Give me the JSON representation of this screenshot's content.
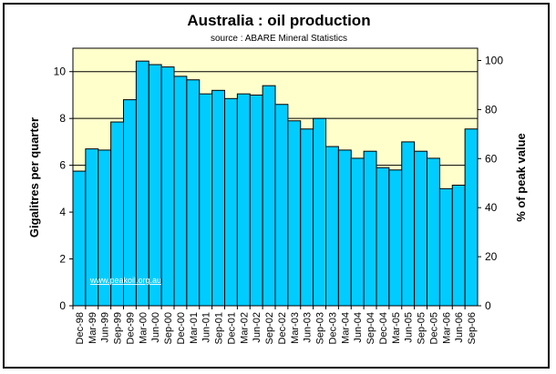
{
  "chart_data": {
    "type": "bar",
    "title": "Australia : oil production",
    "subtitle": "source : ABARE Mineral Statistics",
    "ylabel": "Gigalitres per quarter",
    "y2label": "% of peak value",
    "ylim": [
      0,
      11
    ],
    "y_ticks": [
      0,
      2,
      4,
      6,
      8,
      10
    ],
    "y2lim": [
      0,
      105
    ],
    "y2_ticks": [
      0,
      20,
      40,
      60,
      80,
      100
    ],
    "grid": true,
    "watermark": "www.peakoil.org.au",
    "colors": {
      "plot_bg": "#ffffcc",
      "bar": "#00ccff",
      "bar_edge": "#000000"
    },
    "categories": [
      "Dec-98",
      "Mar-99",
      "Jun-99",
      "Sep-99",
      "Dec-99",
      "Mar-00",
      "Jun-00",
      "Sep-00",
      "Dec-00",
      "Mar-01",
      "Jun-01",
      "Sep-01",
      "Dec-01",
      "Mar-02",
      "Jun-02",
      "Sep-02",
      "Dec-02",
      "Mar-03",
      "Jun-03",
      "Sep-03",
      "Dec-03",
      "Mar-04",
      "Jun-04",
      "Sep-04",
      "Dec-04",
      "Mar-05",
      "Jun-05",
      "Sep-05",
      "Dec-05",
      "Mar-06",
      "Jun-06",
      "Sep-06"
    ],
    "category_labels": [
      "Dec-98",
      "Mar-99",
      "Jun-99",
      "Sep-99",
      "Dec-99",
      "Mar-00",
      "Jun-00",
      "Sep-00",
      "Dec-00",
      "Mar-01",
      "Jun-01",
      "Sep-01",
      "Dec-01",
      "Mar-02",
      "Jun-02",
      "Sep-02",
      "Dec-02",
      "Mar-03",
      "Jun-03",
      "Sep-03",
      "Dec-03",
      "Mar-04",
      "Jun-04",
      "Sep-04",
      "Dec-04",
      "Mar-05",
      "Jun-05",
      "Sep-05",
      "Dec-05",
      "Mar-06",
      "Jun-06",
      "Sep-06"
    ],
    "values": [
      5.75,
      6.7,
      6.65,
      7.85,
      8.8,
      10.45,
      10.3,
      10.2,
      9.8,
      9.65,
      9.05,
      9.2,
      8.85,
      9.05,
      9.0,
      9.4,
      8.6,
      7.9,
      7.55,
      8.0,
      6.8,
      6.65,
      6.3,
      6.6,
      5.9,
      5.8,
      7.0,
      6.6,
      6.3,
      5.0,
      5.15,
      7.55
    ]
  }
}
